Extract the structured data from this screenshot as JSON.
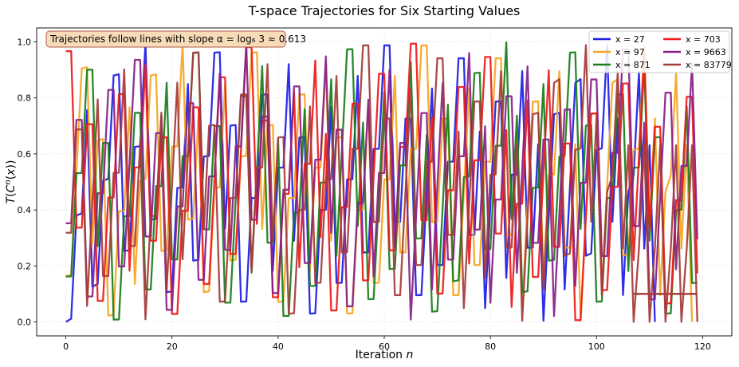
{
  "chart_data": {
    "type": "line",
    "title": "T-space Trajectories for Six Starting Values",
    "xlabel": "Iteration n",
    "ylabel": "T(Cⁿ(x))",
    "xlim": [
      -5.5,
      125.5
    ],
    "ylim": [
      -0.05,
      1.05
    ],
    "xticks": [
      0,
      20,
      40,
      60,
      80,
      100,
      120
    ],
    "yticks": [
      0.0,
      0.2,
      0.4,
      0.6,
      0.8,
      1.0
    ],
    "ytick_labels": [
      "0.0",
      "0.2",
      "0.4",
      "0.6",
      "0.8",
      "1.0"
    ],
    "grid": true,
    "legend_position": "top-right",
    "legend_columns": 2,
    "annotation": "Trajectories follow lines with slope α = log₆ 3 ≈ 0.613",
    "colors": {
      "annotation_bg": "#f8dcb8",
      "annotation_border": "#b05a4a"
    },
    "series": [
      {
        "name": "x = 27",
        "color": "#1f1fe6",
        "start": 27,
        "length": 112
      },
      {
        "name": "x = 97",
        "color": "#f5a623",
        "start": 97,
        "length": 119
      },
      {
        "name": "x = 871",
        "color": "#1a7f1a",
        "start": 871,
        "length": 120
      },
      {
        "name": "x = 703",
        "color": "#ee1c1c",
        "start": 703,
        "length": 120
      },
      {
        "name": "x = 9663",
        "color": "#882288",
        "start": 9663,
        "length": 120
      },
      {
        "name": "x = 83779",
        "color": "#a63c3c",
        "start": 83779,
        "length": 120
      }
    ],
    "tail_segment": {
      "series": "x = 83779",
      "x": [
        107,
        119
      ],
      "y": [
        0.1,
        0.1
      ]
    }
  }
}
